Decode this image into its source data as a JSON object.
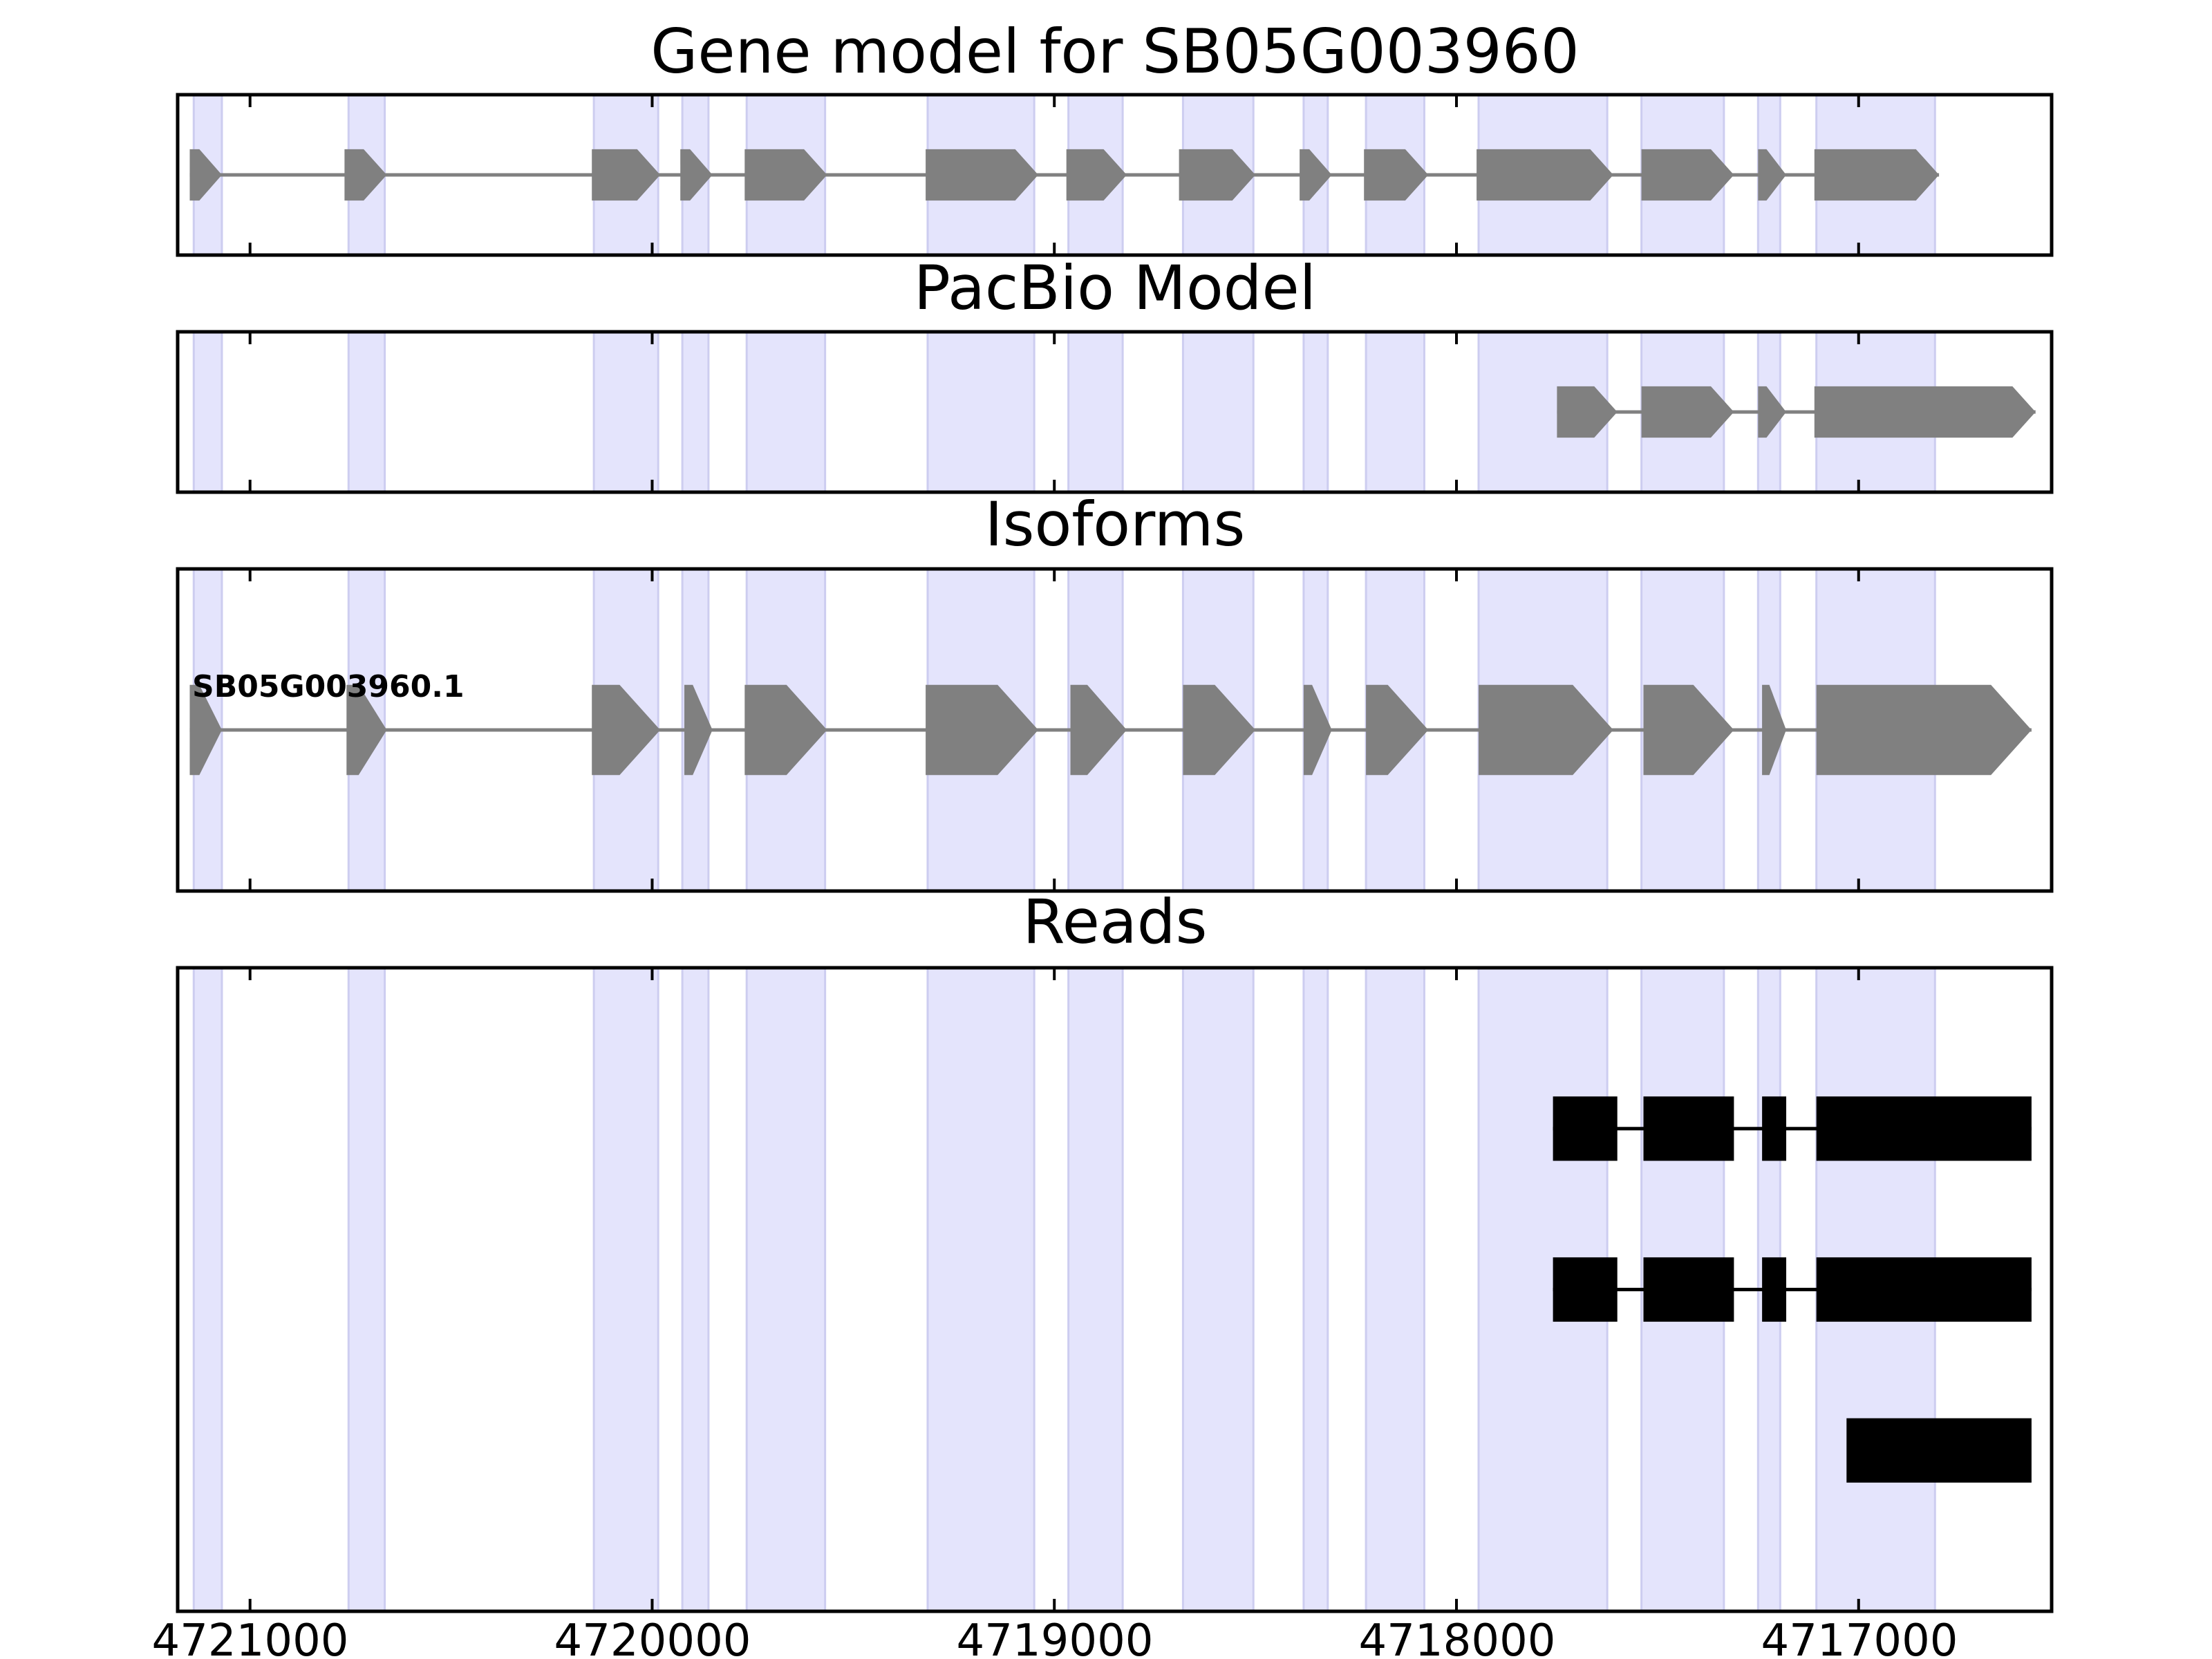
{
  "chart_data": {
    "type": "gene-track",
    "x_axis": {
      "range": [
        4721180,
        4716520
      ],
      "direction": "descending",
      "ticks": [
        4721000,
        4720000,
        4719000,
        4718000,
        4717000
      ],
      "tick_labels": [
        "4721000",
        "4720000",
        "4719000",
        "4718000",
        "4717000"
      ]
    },
    "colors": {
      "exon_band": "#e4e4fc",
      "band_edge": "#cdcdf0",
      "feature": "#808080",
      "read": "#000000",
      "frame": "#000000"
    },
    "exon_bands": [
      [
        4721140,
        4721070
      ],
      [
        4720755,
        4720665
      ],
      [
        4720145,
        4719985
      ],
      [
        4719925,
        4719860
      ],
      [
        4719765,
        4719570
      ],
      [
        4719315,
        4719050
      ],
      [
        4718965,
        4718830
      ],
      [
        4718680,
        4718505
      ],
      [
        4718380,
        4718320
      ],
      [
        4718225,
        4718080
      ],
      [
        4717945,
        4717625
      ],
      [
        4717540,
        4717335
      ],
      [
        4717250,
        4717195
      ],
      [
        4717105,
        4716810
      ]
    ],
    "panels": [
      {
        "title": "Gene model for SB05G003960",
        "features": [
          {
            "strand": "-",
            "height": 0.32,
            "exons": [
              [
                4721150,
                4721070
              ],
              [
                4720765,
                4720660
              ],
              [
                4720150,
                4719980
              ],
              [
                4719930,
                4719850
              ],
              [
                4719770,
                4719565
              ],
              [
                4719320,
                4719040
              ],
              [
                4718970,
                4718820
              ],
              [
                4718690,
                4718500
              ],
              [
                4718390,
                4718310
              ],
              [
                4718230,
                4718070
              ],
              [
                4717950,
                4717610
              ],
              [
                4717540,
                4717310
              ],
              [
                4717250,
                4717180
              ],
              [
                4717110,
                4716800
              ]
            ]
          }
        ]
      },
      {
        "title": "PacBio Model",
        "features": [
          {
            "strand": "-",
            "height": 0.32,
            "exons": [
              [
                4717750,
                4717600
              ],
              [
                4717540,
                4717310
              ],
              [
                4717250,
                4717180
              ],
              [
                4717110,
                4716560
              ]
            ]
          }
        ]
      },
      {
        "title": "Isoforms",
        "features": [
          {
            "label": "SB05G003960.1",
            "strand": "-",
            "height": 0.28,
            "exons": [
              [
                4721150,
                4721070
              ],
              [
                4720760,
                4720660
              ],
              [
                4720150,
                4719980
              ],
              [
                4719920,
                4719850
              ],
              [
                4719770,
                4719565
              ],
              [
                4719320,
                4719040
              ],
              [
                4718960,
                4718820
              ],
              [
                4718680,
                4718500
              ],
              [
                4718380,
                4718310
              ],
              [
                4718225,
                4718070
              ],
              [
                4717945,
                4717610
              ],
              [
                4717535,
                4717310
              ],
              [
                4717240,
                4717180
              ],
              [
                4717105,
                4716570
              ]
            ]
          }
        ]
      },
      {
        "title": "Reads",
        "features": [
          {
            "kind": "read",
            "height": 0.1,
            "exons": [
              [
                4717760,
                4717600
              ],
              [
                4717535,
                4717310
              ],
              [
                4717240,
                4717180
              ],
              [
                4717105,
                4716570
              ]
            ]
          },
          {
            "kind": "read",
            "height": 0.1,
            "exons": [
              [
                4717760,
                4717600
              ],
              [
                4717535,
                4717310
              ],
              [
                4717240,
                4717180
              ],
              [
                4717105,
                4716570
              ]
            ]
          },
          {
            "kind": "read",
            "height": 0.1,
            "exons": [
              [
                4717030,
                4716570
              ]
            ]
          }
        ]
      }
    ]
  }
}
